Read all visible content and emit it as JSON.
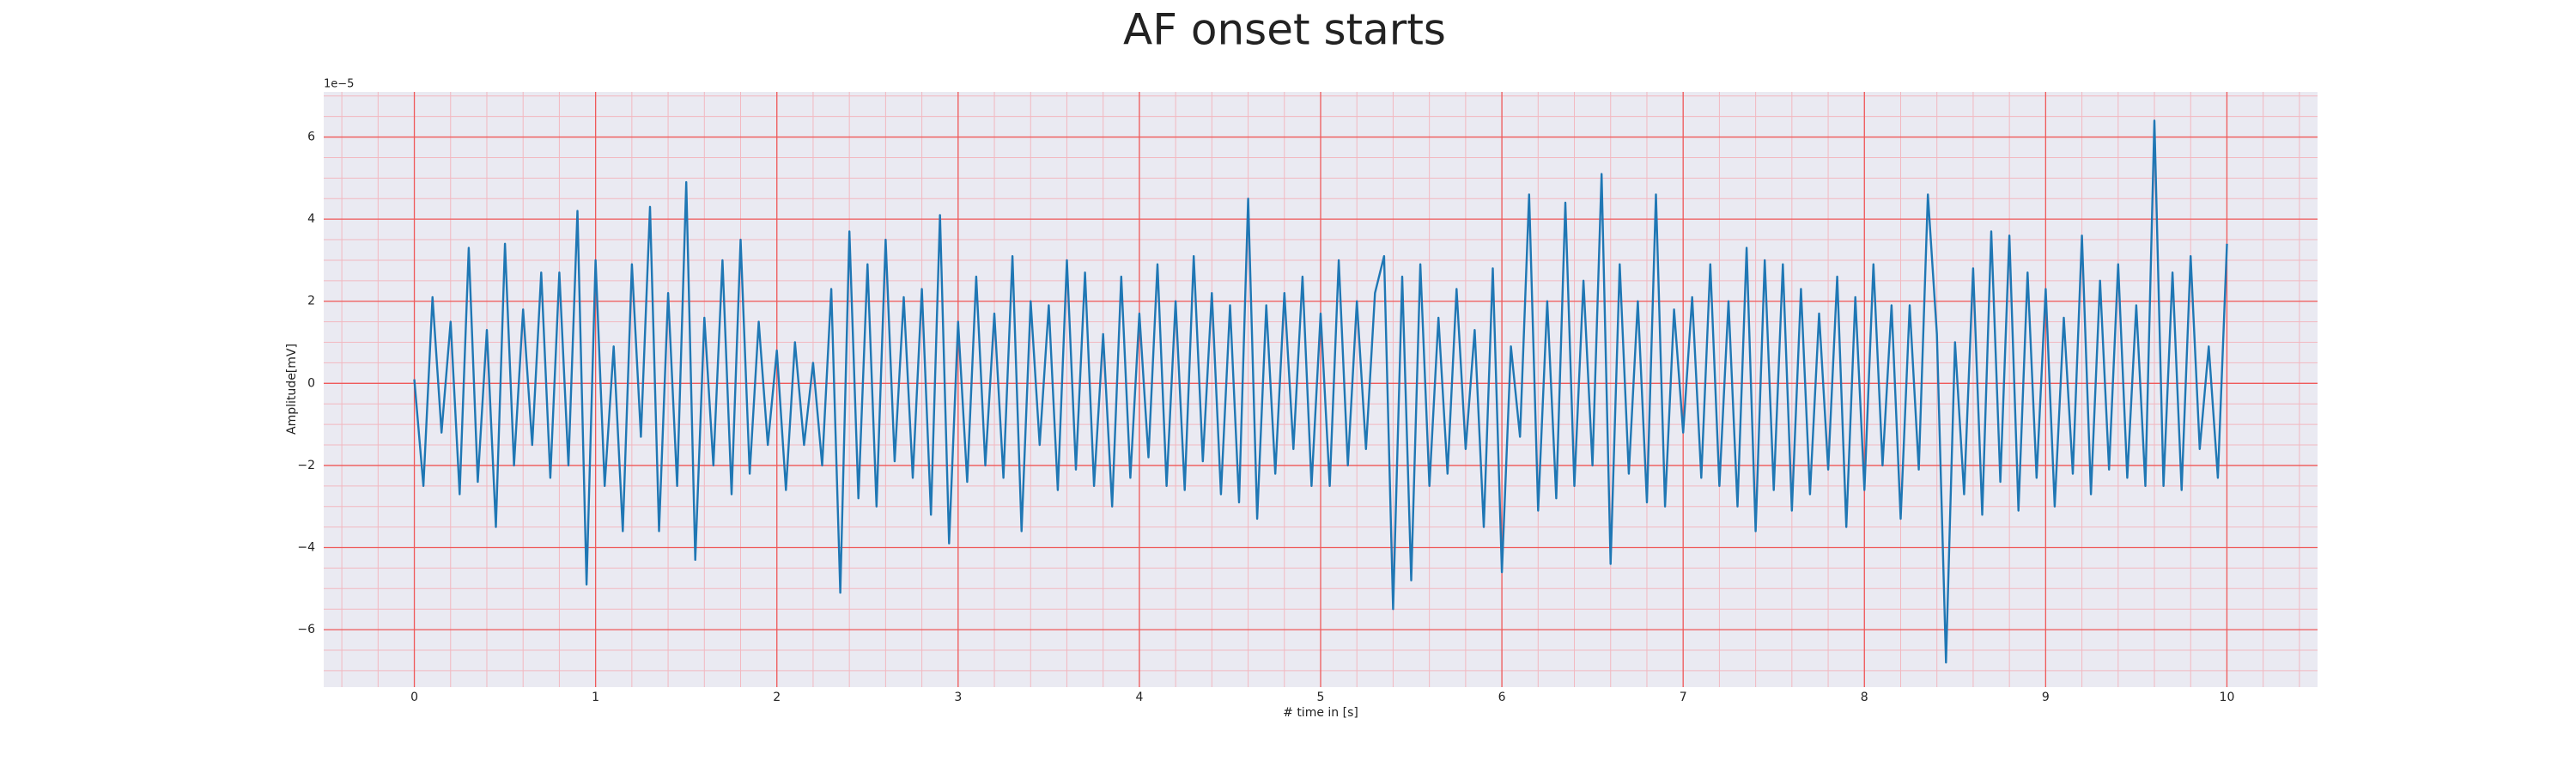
{
  "chart_data": {
    "type": "line",
    "title": "AF onset starts",
    "xlabel": "# time in [s]",
    "ylabel": "Amplitude[mV]",
    "y_offset_label": "1e−5",
    "x": [
      0,
      0.05,
      0.1,
      0.15,
      0.2,
      0.25,
      0.3,
      0.35,
      0.4,
      0.45,
      0.5,
      0.55,
      0.6,
      0.65,
      0.7,
      0.75,
      0.8,
      0.85,
      0.9,
      0.95,
      1,
      1.05,
      1.1,
      1.15,
      1.2,
      1.25,
      1.3,
      1.35,
      1.4,
      1.45,
      1.5,
      1.55,
      1.6,
      1.65,
      1.7,
      1.75,
      1.8,
      1.85,
      1.9,
      1.95,
      2,
      2.05,
      2.1,
      2.15,
      2.2,
      2.25,
      2.3,
      2.35,
      2.4,
      2.45,
      2.5,
      2.55,
      2.6,
      2.65,
      2.7,
      2.75,
      2.8,
      2.85,
      2.9,
      2.95,
      3,
      3.05,
      3.1,
      3.15,
      3.2,
      3.25,
      3.3,
      3.35,
      3.4,
      3.45,
      3.5,
      3.55,
      3.6,
      3.65,
      3.7,
      3.75,
      3.8,
      3.85,
      3.9,
      3.95,
      4,
      4.05,
      4.1,
      4.15,
      4.2,
      4.25,
      4.3,
      4.35,
      4.4,
      4.45,
      4.5,
      4.55,
      4.6,
      4.65,
      4.7,
      4.75,
      4.8,
      4.85,
      4.9,
      4.95,
      5,
      5.05,
      5.1,
      5.15,
      5.2,
      5.25,
      5.3,
      5.35,
      5.4,
      5.45,
      5.5,
      5.55,
      5.6,
      5.65,
      5.7,
      5.75,
      5.8,
      5.85,
      5.9,
      5.95,
      6,
      6.05,
      6.1,
      6.15,
      6.2,
      6.25,
      6.3,
      6.35,
      6.4,
      6.45,
      6.5,
      6.55,
      6.6,
      6.65,
      6.7,
      6.75,
      6.8,
      6.85,
      6.9,
      6.95,
      7,
      7.05,
      7.1,
      7.15,
      7.2,
      7.25,
      7.3,
      7.35,
      7.4,
      7.45,
      7.5,
      7.55,
      7.6,
      7.65,
      7.7,
      7.75,
      7.8,
      7.85,
      7.9,
      7.95,
      8,
      8.05,
      8.1,
      8.15,
      8.2,
      8.25,
      8.3,
      8.35,
      8.4,
      8.45,
      8.5,
      8.55,
      8.6,
      8.65,
      8.7,
      8.75,
      8.8,
      8.85,
      8.9,
      8.95,
      9,
      9.05,
      9.1,
      9.15,
      9.2,
      9.25,
      9.3,
      9.35,
      9.4,
      9.45,
      9.5,
      9.55,
      9.6,
      9.65,
      9.7,
      9.75,
      9.8,
      9.85,
      9.9,
      9.95,
      10
    ],
    "series": [
      {
        "color": "#1f77b4",
        "values": [
          0.1,
          -2.5,
          2.1,
          -1.2,
          1.5,
          -2.7,
          3.3,
          -2.4,
          1.3,
          -3.5,
          3.4,
          -2.0,
          1.8,
          -1.5,
          2.7,
          -2.3,
          2.7,
          -2.0,
          4.2,
          -4.9,
          3.0,
          -2.5,
          0.9,
          -3.6,
          2.9,
          -1.3,
          4.3,
          -3.6,
          2.2,
          -2.5,
          4.9,
          -4.3,
          1.6,
          -2.0,
          3.0,
          -2.7,
          3.5,
          -2.2,
          1.5,
          -1.5,
          0.8,
          -2.6,
          1.0,
          -1.5,
          0.5,
          -2.0,
          2.3,
          -5.1,
          3.7,
          -2.8,
          2.9,
          -3.0,
          3.5,
          -1.9,
          2.1,
          -2.3,
          2.3,
          -3.2,
          4.1,
          -3.9,
          1.5,
          -2.4,
          2.6,
          -2.0,
          1.7,
          -2.3,
          3.1,
          -3.6,
          2.0,
          -1.5,
          1.9,
          -2.6,
          3.0,
          -2.1,
          2.7,
          -2.5,
          1.2,
          -3.0,
          2.6,
          -2.3,
          1.7,
          -1.8,
          2.9,
          -2.5,
          2.0,
          -2.6,
          3.1,
          -1.9,
          2.2,
          -2.7,
          1.9,
          -2.9,
          4.5,
          -3.3,
          1.9,
          -2.2,
          2.2,
          -1.6,
          2.6,
          -2.5,
          1.7,
          -2.5,
          3.0,
          -2.0,
          2.0,
          -1.6,
          2.2,
          3.1,
          -5.5,
          2.6,
          -4.8,
          2.9,
          -2.5,
          1.6,
          -2.2,
          2.3,
          -1.6,
          1.3,
          -3.5,
          2.8,
          -4.6,
          0.9,
          -1.3,
          4.6,
          -3.1,
          2.0,
          -2.8,
          4.4,
          -2.5,
          2.5,
          -2.0,
          5.1,
          -4.4,
          2.9,
          -2.2,
          2.0,
          -2.9,
          4.6,
          -3.0,
          1.8,
          -1.2,
          2.1,
          -2.3,
          2.9,
          -2.5,
          2.0,
          -3.0,
          3.3,
          -3.6,
          3.0,
          -2.6,
          2.9,
          -3.1,
          2.3,
          -2.7,
          1.7,
          -2.1,
          2.6,
          -3.5,
          2.1,
          -2.6,
          2.9,
          -2.0,
          1.9,
          -3.3,
          1.9,
          -2.1,
          4.6,
          1.2,
          -6.8,
          1.0,
          -2.7,
          2.8,
          -3.2,
          3.7,
          -2.4,
          3.6,
          -3.1,
          2.7,
          -2.3,
          2.3,
          -3.0,
          1.6,
          -2.2,
          3.6,
          -2.7,
          2.5,
          -2.1,
          2.9,
          -2.3,
          1.9,
          -2.5,
          6.4,
          -2.5,
          2.7,
          -2.6,
          3.1,
          -1.6,
          0.9,
          -2.3,
          3.4
        ]
      }
    ],
    "xlim": [
      -0.5,
      10.5
    ],
    "ylim": [
      -7.4,
      7.1
    ],
    "xticks": [
      0,
      1,
      2,
      3,
      4,
      5,
      6,
      7,
      8,
      9,
      10
    ],
    "yticks": [
      {
        "value": -6,
        "label": "−6"
      },
      {
        "value": -4,
        "label": "−4"
      },
      {
        "value": -2,
        "label": "−2"
      },
      0,
      2,
      4,
      6
    ],
    "grid": true,
    "minor_grid": true
  }
}
